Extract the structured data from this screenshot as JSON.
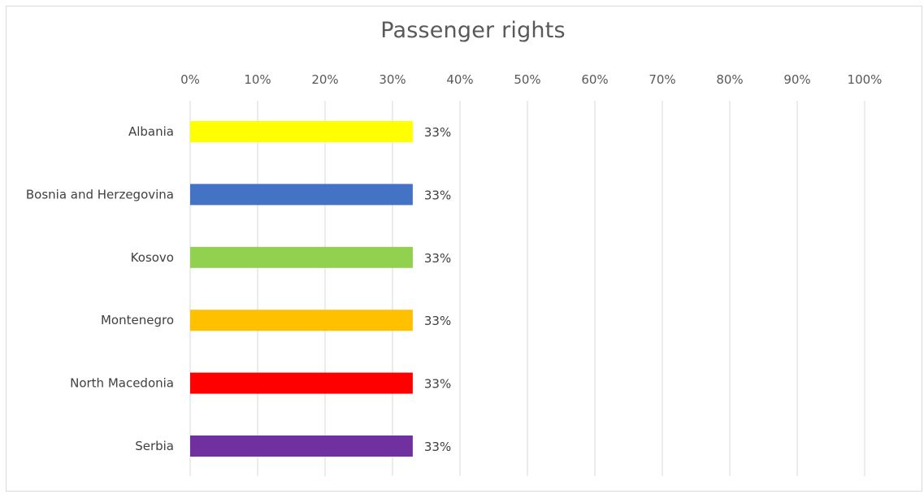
{
  "chart_data": {
    "type": "bar",
    "orientation": "horizontal",
    "title": "Passenger rights",
    "categories": [
      "Albania",
      "Bosnia and Herzegovina",
      "Kosovo",
      "Montenegro",
      "North Macedonia",
      "Serbia"
    ],
    "values": [
      0.33,
      0.33,
      0.33,
      0.33,
      0.33,
      0.33
    ],
    "data_labels": [
      "33%",
      "33%",
      "33%",
      "33%",
      "33%",
      "33%"
    ],
    "bar_colors": [
      "#ffff00",
      "#4472c4",
      "#92d050",
      "#ffc000",
      "#ff0000",
      "#7030a0"
    ],
    "x_ticks": [
      "0%",
      "10%",
      "20%",
      "30%",
      "40%",
      "50%",
      "60%",
      "70%",
      "80%",
      "90%",
      "100%"
    ],
    "xlim": [
      0,
      1
    ],
    "x_axis_position": "top",
    "grid": true,
    "legend": "none",
    "xlabel": "",
    "ylabel": ""
  }
}
